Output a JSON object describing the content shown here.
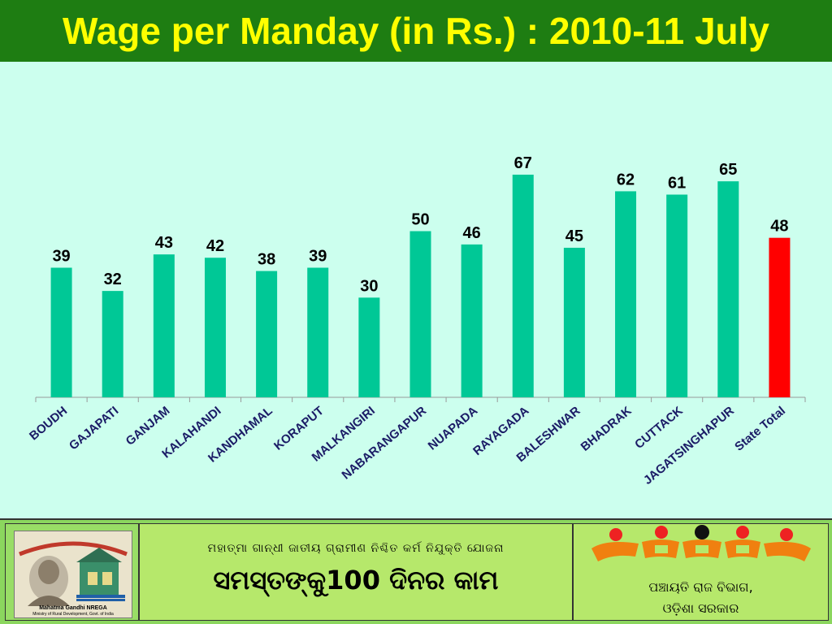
{
  "header": {
    "title": "Wage per Manday (in Rs.) : 2010-11 July"
  },
  "colors": {
    "bar": "#00c896",
    "highlight": "#ff0000",
    "header_bg": "#1e7d12",
    "title": "#ffff00",
    "background": "#ccffee"
  },
  "chart_data": {
    "type": "bar",
    "title": "Wage per Manday (in Rs.) : 2010-11 July",
    "categories": [
      "BOUDH",
      "GAJAPATI",
      "GANJAM",
      "KALAHANDI",
      "KANDHAMAL",
      "KORAPUT",
      "MALKANGIRI",
      "NABARANGAPUR",
      "NUAPADA",
      "RAYAGADA",
      "BALESHWAR",
      "BHADRAK",
      "CUTTACK",
      "JAGATSINGHAPUR",
      "State Total"
    ],
    "values": [
      39,
      32,
      43,
      42,
      38,
      39,
      30,
      50,
      46,
      67,
      45,
      62,
      61,
      65,
      48
    ],
    "highlight_category": "State Total",
    "ylim": [
      0,
      75
    ],
    "grid": false
  },
  "footer": {
    "logo": {
      "caption1": "Mahatma Gandhi NREGA",
      "caption2": "Ministry of Rural Development, Govt. of India"
    },
    "scheme_line": "ମହାତ୍ମା ଗାନ୍ଧୀ ଜାତୀୟ ଗ୍ରାମୀଣ ନିଶ୍ଚିତ କର୍ମ ନିଯୁକ୍ତି ଯୋଜନା",
    "slogan": "ସମସ୍ତଙ୍କୁ100 ଦିନର କାମ",
    "dept_line1": "ପଞ୍ଚାୟତି ରାଜ ବିଭାଗ,",
    "dept_line2": "ଓଡ଼ିଶା ସରକାର"
  }
}
